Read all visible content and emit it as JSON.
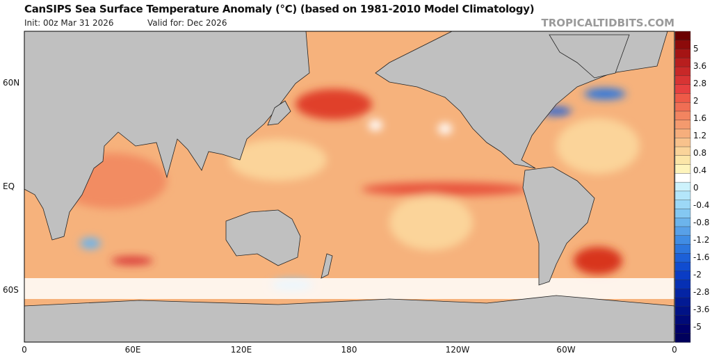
{
  "header": {
    "title": "CanSIPS Sea Surface Temperature Anomaly (°C) (based on 1981-2010 Model Climatology)",
    "init": "Init: 00z Mar 31 2026",
    "valid": "Valid for: Dec 2026",
    "brand": "TROPICALTIDBITS.COM"
  },
  "axes": {
    "lat_labels": [
      "60N",
      "EQ",
      "60S"
    ],
    "lon_labels": [
      "0",
      "60E",
      "120E",
      "180",
      "120W",
      "60W",
      "0"
    ]
  },
  "colorbar": {
    "labels": [
      "5",
      "3.6",
      "2.8",
      "2",
      "1.6",
      "1.2",
      "0.8",
      "0.4",
      "0",
      "-0.4",
      "-0.8",
      "-1.2",
      "-1.6",
      "-2",
      "-2.8",
      "-3.6",
      "-5"
    ],
    "warm_colors": [
      "#6b0000",
      "#8c0a0a",
      "#a51414",
      "#b81e1e",
      "#c82828",
      "#d83434",
      "#e64040",
      "#ee5a48",
      "#f06e54",
      "#f28460",
      "#f49a6e",
      "#f6ae7c",
      "#f8c28c",
      "#fad49a",
      "#fce6a8",
      "#fef4bc",
      "#ffffff"
    ],
    "cool_colors": [
      "#ffffff",
      "#cdf2fc",
      "#b4e6fa",
      "#9cd8f6",
      "#84c8f2",
      "#6cb4ec",
      "#58a0e8",
      "#408ce4",
      "#2c76de",
      "#1c60d8",
      "#104cd0",
      "#0a3cc4",
      "#0630b4",
      "#0424a4",
      "#021a94",
      "#001286",
      "#000a78",
      "#00006a",
      "#00005c"
    ]
  }
}
